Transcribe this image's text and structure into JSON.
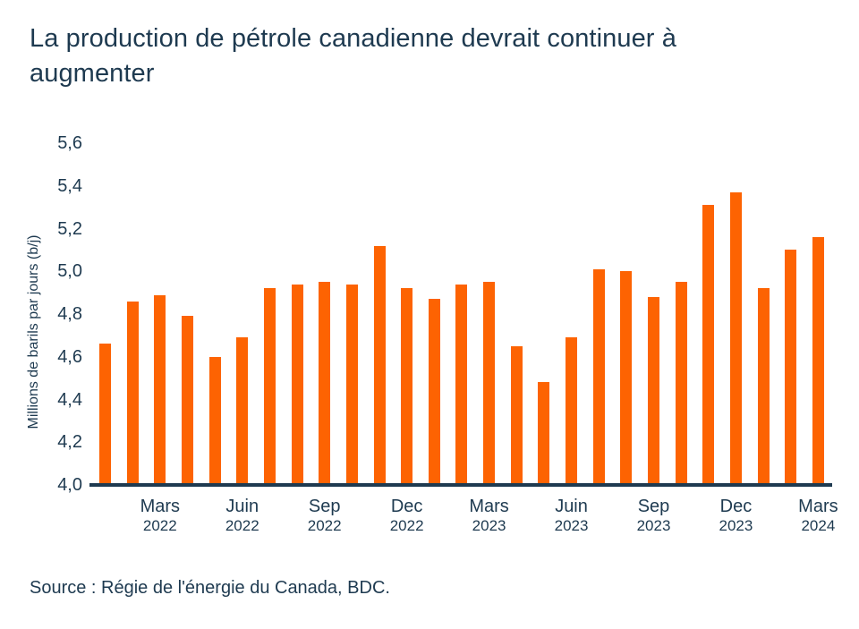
{
  "title": "La production de pétrole canadienne devrait continuer à augmenter",
  "source": "Source : Régie de l'énergie du Canada, BDC.",
  "colors": {
    "bar": "#fd6302",
    "text": "#1e3a50",
    "axis_line": "#1e3a50",
    "background": "#ffffff"
  },
  "chart_data": {
    "type": "bar",
    "title": "La production de pétrole canadienne devrait continuer à augmenter",
    "xlabel": "",
    "ylabel": "Millions de barils par jours (b/j)",
    "ylim": [
      4.0,
      5.6
    ],
    "ytick_step": 0.2,
    "ytick_labels": [
      "4,0",
      "4,2",
      "4,4",
      "4,6",
      "4,8",
      "5,0",
      "5,2",
      "5,4",
      "5,6"
    ],
    "grid": false,
    "legend": "none",
    "categories": [
      "2022-01",
      "2022-02",
      "2022-03",
      "2022-04",
      "2022-05",
      "2022-06",
      "2022-07",
      "2022-08",
      "2022-09",
      "2022-10",
      "2022-11",
      "2022-12",
      "2023-01",
      "2023-02",
      "2023-03",
      "2023-04",
      "2023-05",
      "2023-06",
      "2023-07",
      "2023-08",
      "2023-09",
      "2023-10",
      "2023-11",
      "2023-12",
      "2024-01",
      "2024-02",
      "2024-03"
    ],
    "values": [
      4.66,
      4.86,
      4.89,
      4.79,
      4.6,
      4.69,
      4.92,
      4.94,
      4.95,
      4.94,
      5.12,
      4.92,
      4.87,
      4.94,
      4.95,
      4.65,
      4.48,
      4.69,
      5.01,
      5.0,
      4.88,
      4.95,
      5.31,
      5.37,
      4.92,
      5.1,
      5.16
    ],
    "x_ticks": [
      {
        "month": "Mars",
        "year": "2022",
        "bar_index": 2
      },
      {
        "month": "Juin",
        "year": "2022",
        "bar_index": 5
      },
      {
        "month": "Sep",
        "year": "2022",
        "bar_index": 8
      },
      {
        "month": "Dec",
        "year": "2022",
        "bar_index": 11
      },
      {
        "month": "Mars",
        "year": "2023",
        "bar_index": 14
      },
      {
        "month": "Juin",
        "year": "2023",
        "bar_index": 17
      },
      {
        "month": "Sep",
        "year": "2023",
        "bar_index": 20
      },
      {
        "month": "Dec",
        "year": "2023",
        "bar_index": 23
      },
      {
        "month": "Mars",
        "year": "2024",
        "bar_index": 26
      }
    ]
  }
}
